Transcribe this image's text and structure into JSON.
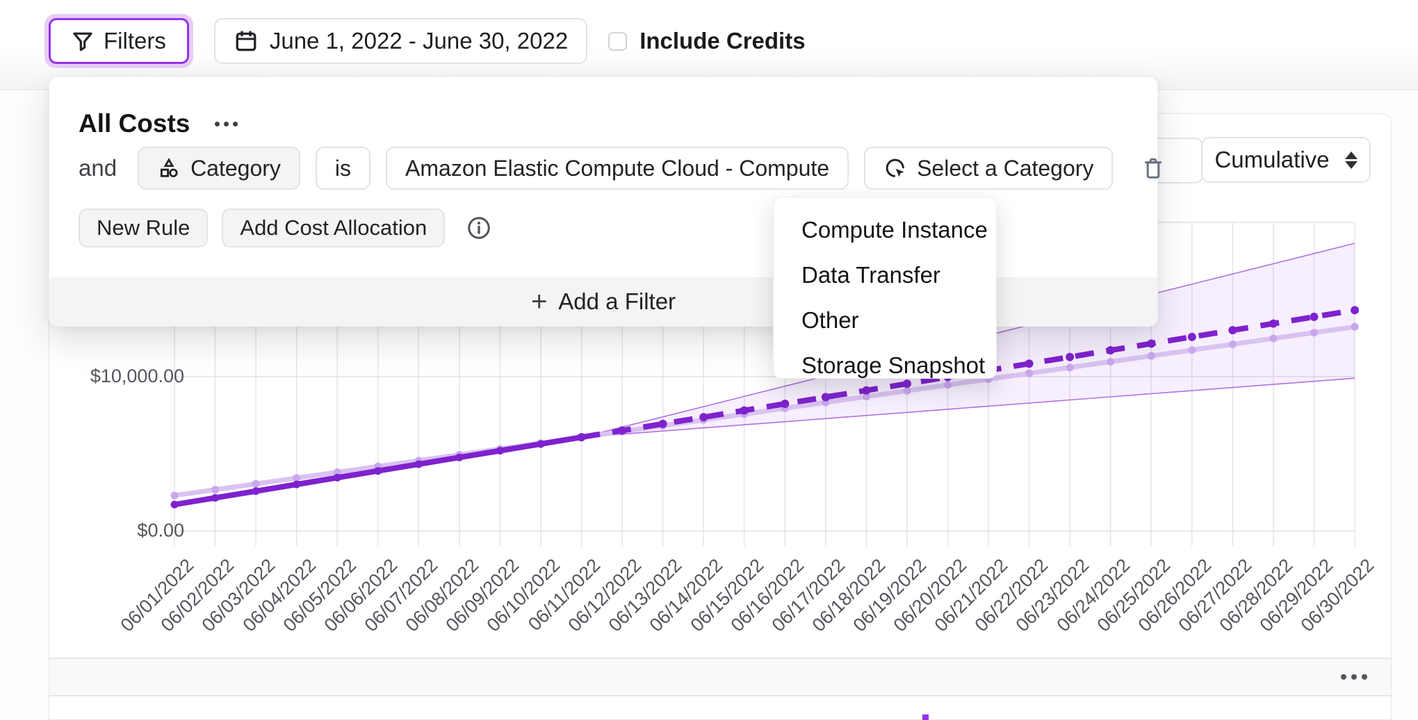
{
  "toolbar": {
    "filters_label": "Filters",
    "date_range": "June 1, 2022 - June 30, 2022",
    "include_credits_label": "Include Credits",
    "include_credits_checked": false
  },
  "filter_panel": {
    "title": "All Costs",
    "rule": {
      "conjunction": "and",
      "field_label": "Category",
      "operator_label": "is",
      "value_label": "Amazon Elastic Compute Cloud - Compute",
      "select_category_label": "Select a Category"
    },
    "new_rule_label": "New Rule",
    "add_cost_allocation_label": "Add Cost Allocation",
    "add_filter_label": "Add a Filter"
  },
  "category_dropdown": {
    "items": [
      "Compute Instance",
      "Data Transfer",
      "Other",
      "Storage Snapshot"
    ]
  },
  "chart_card": {
    "aggregation_label": "Cumulative"
  },
  "colors": {
    "accent": "#9333ea",
    "line_dark": "#7e22ce",
    "line_light": "#d9c3f2",
    "marker_light": "#c9a7ec",
    "band_border": "#a259e0",
    "gridline": "#e5e5e9"
  },
  "chart_data": {
    "type": "line",
    "title": "",
    "xlabel": "",
    "ylabel": "",
    "legend": "none",
    "grid": true,
    "ylim": [
      0,
      20000
    ],
    "y_ticks": [
      {
        "value": 0,
        "label": "$0.00"
      },
      {
        "value": 10000,
        "label": "$10,000.00"
      }
    ],
    "y_gridline_values": [
      0,
      10000,
      20000
    ],
    "dates": [
      "06/01/2022",
      "06/02/2022",
      "06/03/2022",
      "06/04/2022",
      "06/05/2022",
      "06/06/2022",
      "06/07/2022",
      "06/08/2022",
      "06/09/2022",
      "06/10/2022",
      "06/11/2022",
      "06/12/2022",
      "06/13/2022",
      "06/14/2022",
      "06/15/2022",
      "06/16/2022",
      "06/17/2022",
      "06/18/2022",
      "06/19/2022",
      "06/20/2022",
      "06/21/2022",
      "06/22/2022",
      "06/23/2022",
      "06/24/2022",
      "06/25/2022",
      "06/26/2022",
      "06/27/2022",
      "06/28/2022",
      "06/29/2022",
      "06/30/2022"
    ],
    "series": [
      {
        "name": "actual-cumulative-cost",
        "style": "solid-dark",
        "start_day": 1,
        "values": [
          1710,
          2147,
          2583,
          3020,
          3456,
          3893,
          4329,
          4766,
          5202,
          5639,
          6075
        ]
      },
      {
        "name": "forecast-cumulative-cost",
        "style": "dashed-dark",
        "start_day": 11,
        "values": [
          6075,
          6508,
          6942,
          7375,
          7809,
          8242,
          8676,
          9109,
          9542,
          9976,
          10409,
          10843,
          11276,
          11710,
          12143,
          12576,
          13010,
          13443,
          13877,
          14310
        ]
      },
      {
        "name": "forecast-upper-bound",
        "style": "band-edge",
        "start_day": 11,
        "values": [
          6075,
          6736,
          7398,
          8059,
          8721,
          9382,
          10043,
          10705,
          11366,
          12028,
          12689,
          13350,
          14012,
          14673,
          15335,
          15996,
          16657,
          17319,
          17980,
          18642
        ]
      },
      {
        "name": "forecast-lower-bound",
        "style": "band-edge",
        "start_day": 11,
        "values": [
          6075,
          6276,
          6478,
          6679,
          6881,
          7082,
          7283,
          7485,
          7686,
          7888,
          8089,
          8290,
          8492,
          8693,
          8895,
          9096,
          9297,
          9499,
          9700,
          9902
        ]
      },
      {
        "name": "comparison-cumulative-cost",
        "style": "solid-light",
        "start_day": 1,
        "values": [
          2300,
          2677,
          3054,
          3431,
          3808,
          4185,
          4562,
          4939,
          5316,
          5693,
          6070,
          6447,
          6824,
          7201,
          7578,
          7955,
          8332,
          8709,
          9086,
          9463,
          9840,
          10217,
          10594,
          10971,
          11348,
          11725,
          12102,
          12479,
          12856,
          13230
        ]
      }
    ]
  }
}
